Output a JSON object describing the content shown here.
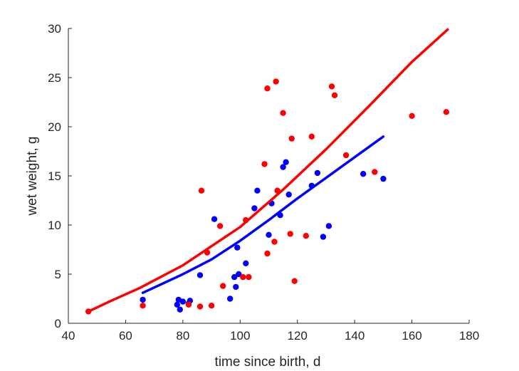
{
  "chart_data": {
    "type": "scatter",
    "xlabel": "time since birth, d",
    "ylabel": "wet weight, g",
    "xlim": [
      40,
      180
    ],
    "ylim": [
      0,
      30
    ],
    "xticks": [
      40,
      60,
      80,
      100,
      120,
      140,
      160,
      180
    ],
    "yticks": [
      0,
      5,
      10,
      15,
      20,
      25,
      30
    ],
    "grid": false,
    "series": [
      {
        "color": "#0000ff",
        "points": [
          [
            66,
            2.4
          ],
          [
            78,
            1.9
          ],
          [
            78.5,
            2.4
          ],
          [
            79,
            1.4
          ],
          [
            80,
            2.2
          ],
          [
            82,
            2.0
          ],
          [
            82.5,
            2.3
          ],
          [
            86,
            4.9
          ],
          [
            91,
            10.6
          ],
          [
            96.5,
            2.5
          ],
          [
            98,
            4.7
          ],
          [
            98.5,
            3.7
          ],
          [
            99,
            7.7
          ],
          [
            99.5,
            5.0
          ],
          [
            102,
            6.1
          ],
          [
            105,
            11.7
          ],
          [
            106,
            13.5
          ],
          [
            110,
            9.0
          ],
          [
            111,
            12.2
          ],
          [
            114,
            11.0
          ],
          [
            115,
            15.9
          ],
          [
            116,
            16.4
          ],
          [
            117,
            13.1
          ],
          [
            125,
            14.0
          ],
          [
            127,
            15.3
          ],
          [
            129,
            8.8
          ],
          [
            131,
            9.9
          ],
          [
            143,
            15.2
          ],
          [
            150,
            14.7
          ]
        ],
        "fit": [
          [
            66,
            3.1
          ],
          [
            80,
            5.0
          ],
          [
            90,
            6.5
          ],
          [
            100,
            8.4
          ],
          [
            110,
            10.5
          ],
          [
            120,
            12.7
          ],
          [
            130,
            14.8
          ],
          [
            140,
            16.9
          ],
          [
            150,
            19.0
          ]
        ]
      },
      {
        "color": "#ff0000",
        "points": [
          [
            47,
            1.2
          ],
          [
            66,
            1.8
          ],
          [
            82,
            1.9
          ],
          [
            86,
            1.7
          ],
          [
            86.5,
            13.5
          ],
          [
            88.5,
            7.2
          ],
          [
            90,
            1.8
          ],
          [
            93,
            9.9
          ],
          [
            94,
            3.8
          ],
          [
            101,
            4.7
          ],
          [
            102,
            10.5
          ],
          [
            103,
            4.7
          ],
          [
            108.5,
            16.2
          ],
          [
            109.5,
            23.9
          ],
          [
            109.5,
            7.1
          ],
          [
            112,
            8.3
          ],
          [
            112.5,
            24.6
          ],
          [
            113,
            13.5
          ],
          [
            115,
            21.4
          ],
          [
            117.5,
            9.1
          ],
          [
            118,
            18.8
          ],
          [
            119,
            4.3
          ],
          [
            123,
            8.9
          ],
          [
            125,
            19.0
          ],
          [
            132,
            24.1
          ],
          [
            133,
            23.2
          ],
          [
            137,
            17.1
          ],
          [
            147,
            15.4
          ],
          [
            160,
            21.1
          ],
          [
            172,
            21.5
          ]
        ],
        "fit": [
          [
            47,
            1.2
          ],
          [
            55,
            2.3
          ],
          [
            65,
            3.6
          ],
          [
            80,
            5.9
          ],
          [
            100,
            9.8
          ],
          [
            115,
            13.6
          ],
          [
            130,
            17.7
          ],
          [
            145,
            22.1
          ],
          [
            160,
            26.6
          ],
          [
            172.5,
            29.9
          ]
        ]
      }
    ]
  }
}
